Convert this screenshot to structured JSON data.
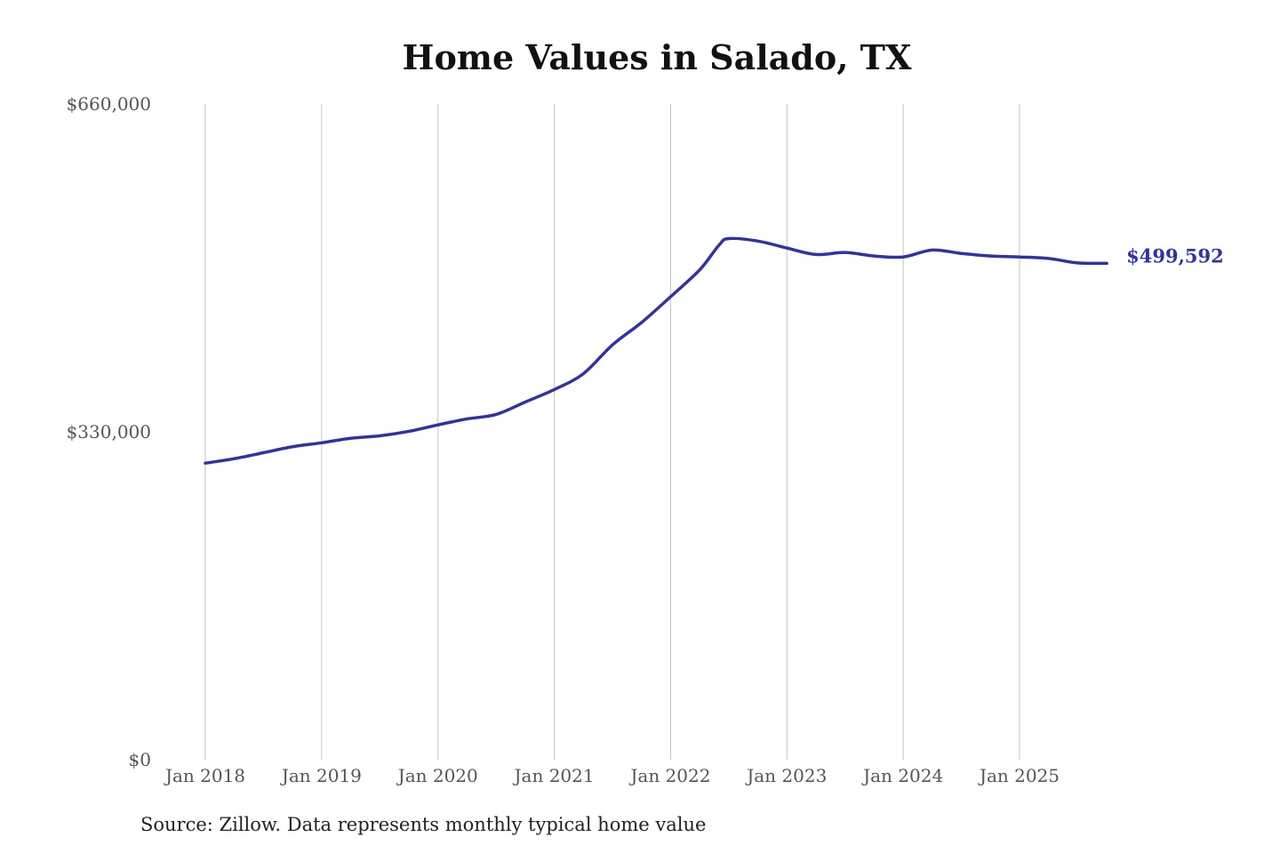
{
  "chart_data": {
    "type": "line",
    "title": "Home Values in Salado, TX",
    "source": "Source: Zillow. Data represents monthly typical home value",
    "xlabel": "",
    "ylabel": "",
    "ylim": [
      0,
      660000
    ],
    "y_ticks": [
      0,
      330000,
      660000
    ],
    "y_tick_labels": [
      "$0",
      "$330,000",
      "$660,000"
    ],
    "x_ticks": [
      "2018-01",
      "2019-01",
      "2020-01",
      "2021-01",
      "2022-01",
      "2023-01",
      "2024-01",
      "2025-01"
    ],
    "x_tick_labels": [
      "Jan 2018",
      "Jan 2019",
      "Jan 2020",
      "Jan 2021",
      "Jan 2022",
      "Jan 2023",
      "Jan 2024",
      "Jan 2025"
    ],
    "grid": "vertical",
    "line_color": "#333399",
    "end_label": "$499,592",
    "series": [
      {
        "x": [
          "2018-01",
          "2018-04",
          "2018-07",
          "2018-10",
          "2019-01",
          "2019-04",
          "2019-07",
          "2019-10",
          "2020-01",
          "2020-04",
          "2020-07",
          "2020-10",
          "2021-01",
          "2021-04",
          "2021-07",
          "2021-10",
          "2022-01",
          "2022-04",
          "2022-06",
          "2022-07",
          "2022-10",
          "2023-01",
          "2023-04",
          "2023-07",
          "2023-10",
          "2024-01",
          "2024-04",
          "2024-07",
          "2024-10",
          "2025-01",
          "2025-04",
          "2025-07",
          "2025-10"
        ],
        "y": [
          298500,
          303000,
          309000,
          315000,
          319000,
          323500,
          326000,
          330500,
          337000,
          343000,
          347500,
          360000,
          372500,
          388500,
          417500,
          440000,
          466000,
          493000,
          518000,
          524500,
          522000,
          515000,
          508500,
          510500,
          507000,
          506000,
          513000,
          509500,
          507000,
          506000,
          504500,
          500000,
          499592
        ]
      }
    ]
  }
}
